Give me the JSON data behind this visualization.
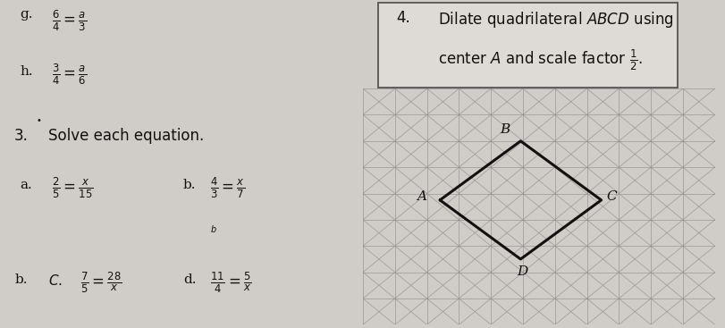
{
  "bg_color": "#d0ccc8",
  "left_bg": "#cbc7c2",
  "right_bg": "#e8e4df",
  "problem_g_label": "g.",
  "problem_g_eq": "\\frac{6}{4} = \\frac{a}{3}",
  "problem_h_label": "h.",
  "problem_h_eq": "\\frac{3}{4} = \\frac{a}{6}",
  "problem3_num": "3.",
  "problem3_title": "Solve each equation.",
  "prob3a_label": "a.",
  "prob3a_eq": "\\frac{2}{5} = \\frac{x}{15}",
  "prob3b_label": "b.",
  "prob3b_eq": "\\frac{4}{3} = \\frac{x}{7}",
  "prob3c_prefix": "b.",
  "prob3c_label": "C.",
  "prob3c_eq": "\\frac{7}{5} = \\frac{28}{x}",
  "prob3d_label": "d.",
  "prob3d_eq": "\\frac{11}{4} = \\frac{5}{x}",
  "prob4_num": "4.",
  "prob4_line1": "Dilate quadrilateral $ABCD$ using",
  "prob4_line2": "center $A$ and scale factor $\\frac{1}{2}$.",
  "label_A": "A",
  "label_B": "B",
  "label_C": "C",
  "label_D": "D",
  "grid_color": "#909090",
  "quad_color": "#111111",
  "text_color": "#111111",
  "box_face": "#dedad5",
  "box_edge": "#555555",
  "font_size_label": 11,
  "font_size_eq": 12,
  "font_size_title": 11
}
